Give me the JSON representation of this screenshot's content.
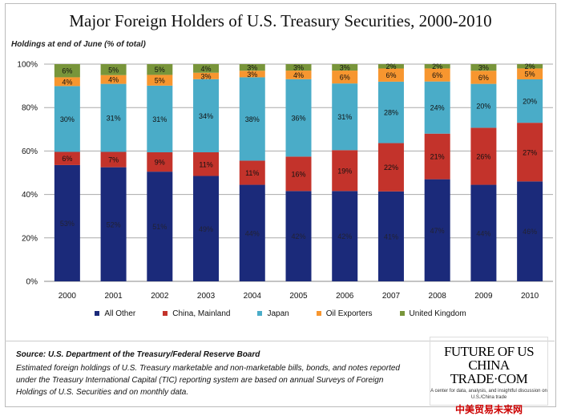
{
  "chart_data": {
    "type": "bar",
    "stacked": true,
    "title": "Major Foreign Holders of U.S. Treasury Securities, 2000-2010",
    "ylabel": "Holdings at end of June (% of total)",
    "xlabel": "",
    "ylim": [
      0,
      100
    ],
    "yticks": [
      "0%",
      "20%",
      "40%",
      "60%",
      "80%",
      "100%"
    ],
    "grid": true,
    "legend_position": "bottom",
    "categories": [
      "2000",
      "2001",
      "2002",
      "2003",
      "2004",
      "2005",
      "2006",
      "2007",
      "2008",
      "2009",
      "2010"
    ],
    "series": [
      {
        "name": "All Other",
        "color": "#1b2a7a",
        "values": [
          53,
          52,
          51,
          49,
          44,
          42,
          42,
          41,
          47,
          44,
          46
        ]
      },
      {
        "name": "China, Mainland",
        "color": "#c3332b",
        "values": [
          6,
          7,
          9,
          11,
          11,
          16,
          19,
          22,
          21,
          26,
          27
        ]
      },
      {
        "name": "Japan",
        "color": "#4aacc8",
        "values": [
          30,
          31,
          31,
          34,
          38,
          36,
          31,
          28,
          24,
          20,
          20
        ]
      },
      {
        "name": "Oil Exporters",
        "color": "#f7962f",
        "values": [
          4,
          4,
          5,
          3,
          3,
          4,
          6,
          6,
          6,
          6,
          5
        ]
      },
      {
        "name": "United Kingdom",
        "color": "#78953a",
        "values": [
          6,
          5,
          5,
          4,
          3,
          3,
          3,
          2,
          2,
          3,
          2
        ]
      }
    ]
  },
  "footer": {
    "source": "Source: U.S. Department of the Treasury/Federal Reserve Board",
    "note": "Estimated foreign holdings of U.S. Treasury marketable and non-marketable bills, bonds, and notes reported under the Treasury International Capital (TIC) reporting system are based on annual Surveys of Foreign Holdings of U.S. Securities and on monthly data."
  },
  "logo": {
    "line1": "FUTURE OF US",
    "line2": "CHINA TRADE·COM",
    "tagline": "A center for data, analysis, and insightful discussion on U.S./China trade",
    "chinese": "中美贸易未来网"
  }
}
